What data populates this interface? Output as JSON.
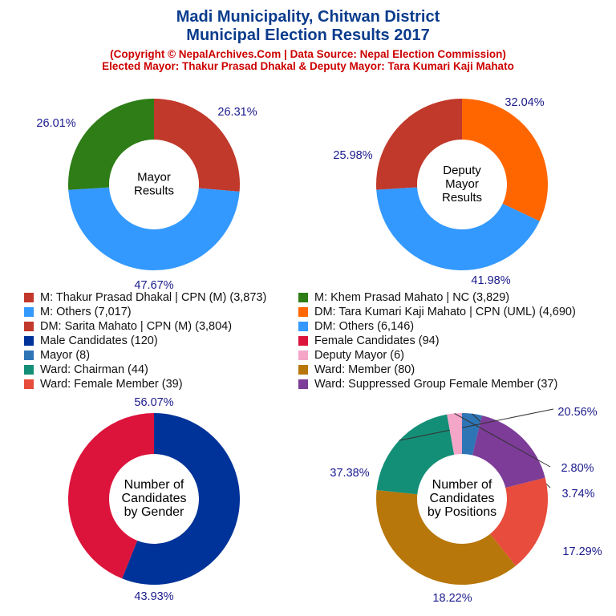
{
  "header": {
    "title_line1": "Madi Municipality, Chitwan District",
    "title_line2": "Municipal Election Results 2017",
    "copyright": "(Copyright © NepalArchives.Com | Data Source: Nepal Election Commission)",
    "elected": "Elected Mayor: Thakur Prasad Dhakal & Deputy Mayor: Tara Kumari Kaji Mahato"
  },
  "legend": [
    {
      "label": "M: Thakur Prasad Dhakal | CPN (M) (3,873)",
      "color": "#c0392b"
    },
    {
      "label": "M: Khem Prasad Mahato | NC (3,829)",
      "color": "#2e7d16"
    },
    {
      "label": "M: Others (7,017)",
      "color": "#3399ff"
    },
    {
      "label": "DM: Tara Kumari Kaji Mahato | CPN (UML) (4,690)",
      "color": "#ff6600"
    },
    {
      "label": "DM: Sarita Mahato | CPN (M) (3,804)",
      "color": "#c0392b"
    },
    {
      "label": "DM: Others (6,146)",
      "color": "#3399ff"
    },
    {
      "label": "Male Candidates (120)",
      "color": "#003399"
    },
    {
      "label": "Female Candidates (94)",
      "color": "#dc143c"
    },
    {
      "label": "Mayor (8)",
      "color": "#2e75b6"
    },
    {
      "label": "Deputy Mayor (6)",
      "color": "#f4a6c8"
    },
    {
      "label": "Ward: Chairman (44)",
      "color": "#148f77"
    },
    {
      "label": "Ward: Member (80)",
      "color": "#b8770b"
    },
    {
      "label": "Ward: Female Member (39)",
      "color": "#e74c3c"
    },
    {
      "label": "Ward: Suppressed Group Female Member (37)",
      "color": "#7d3c98"
    }
  ],
  "chart_data": [
    {
      "type": "pie",
      "center_label": [
        "Mayor",
        "Results"
      ],
      "slices": [
        {
          "name": "M: Thakur Prasad Dhakal | CPN (M)",
          "value": 3873,
          "pct_label": "26.31%",
          "color": "#c0392b"
        },
        {
          "name": "M: Others",
          "value": 7017,
          "pct_label": "47.67%",
          "color": "#3399ff"
        },
        {
          "name": "M: Khem Prasad Mahato | NC",
          "value": 3829,
          "pct_label": "26.01%",
          "color": "#2e7d16"
        }
      ]
    },
    {
      "type": "pie",
      "center_label": [
        "Deputy",
        "Mayor",
        "Results"
      ],
      "slices": [
        {
          "name": "DM: Tara Kumari Kaji Mahato | CPN (UML)",
          "value": 4690,
          "pct_label": "32.04%",
          "color": "#ff6600"
        },
        {
          "name": "DM: Others",
          "value": 6146,
          "pct_label": "41.98%",
          "color": "#3399ff"
        },
        {
          "name": "DM: Sarita Mahato | CPN (M)",
          "value": 3804,
          "pct_label": "25.98%",
          "color": "#c0392b"
        }
      ]
    },
    {
      "type": "pie",
      "center_label": [
        "Number of",
        "Candidates",
        "by Gender"
      ],
      "slices": [
        {
          "name": "Male Candidates",
          "value": 120,
          "pct_label": "56.07%",
          "color": "#003399"
        },
        {
          "name": "Female Candidates",
          "value": 94,
          "pct_label": "43.93%",
          "color": "#dc143c"
        }
      ]
    },
    {
      "type": "pie",
      "center_label": [
        "Number of",
        "Candidates",
        "by Positions"
      ],
      "slices": [
        {
          "name": "Mayor",
          "value": 8,
          "pct_label": "3.74%",
          "color": "#2e75b6"
        },
        {
          "name": "Ward: Suppressed Group Female Member",
          "value": 37,
          "pct_label": "17.29%",
          "color": "#7d3c98"
        },
        {
          "name": "Ward: Female Member",
          "value": 39,
          "pct_label": "18.22%",
          "color": "#e74c3c"
        },
        {
          "name": "Ward: Member",
          "value": 80,
          "pct_label": "37.38%",
          "color": "#b8770b"
        },
        {
          "name": "Ward: Chairman",
          "value": 44,
          "pct_label": "20.56%",
          "color": "#148f77"
        },
        {
          "name": "Deputy Mayor",
          "value": 6,
          "pct_label": "2.80%",
          "color": "#f4a6c8"
        }
      ]
    }
  ]
}
